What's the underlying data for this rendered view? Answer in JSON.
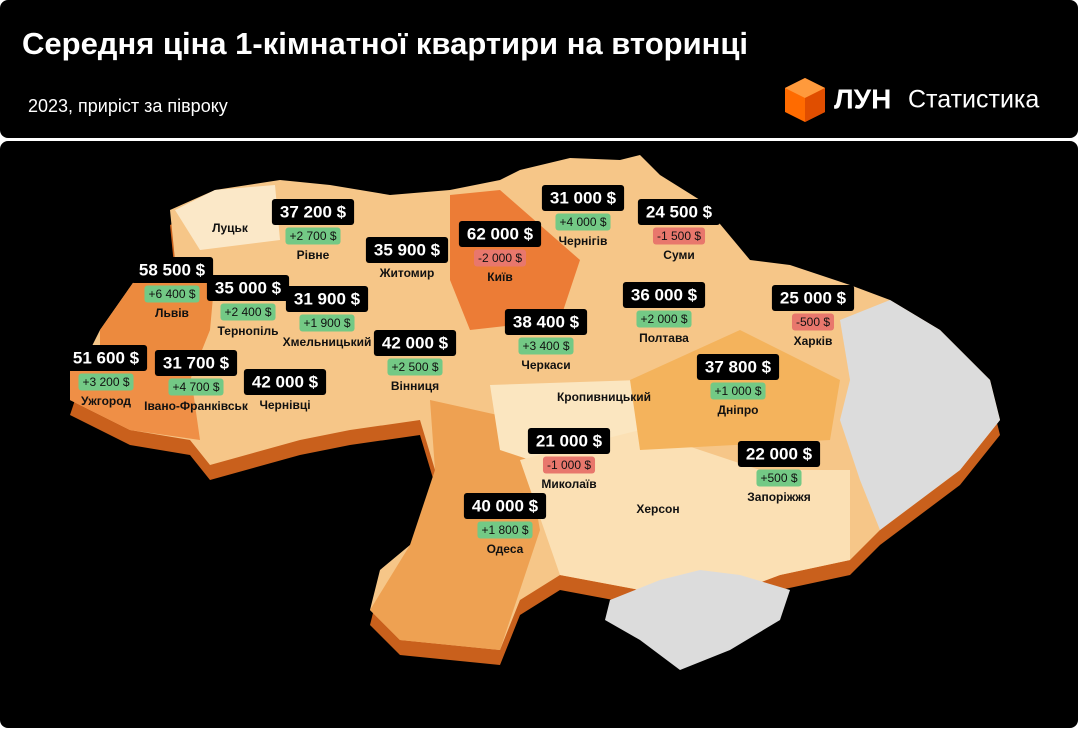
{
  "header": {
    "title": "Середня ціна 1-кімнатної квартири на вторинці",
    "subtitle": "2023, приріст за півроку",
    "brand": "ЛУН",
    "brand_section": "Статистика"
  },
  "cities": [
    {
      "name": "Луцьк"
    },
    {
      "name": "Рівне",
      "price": "37 200 $",
      "change": "+2 700 $"
    },
    {
      "name": "Житомир",
      "price": "35 900 $"
    },
    {
      "name": "Київ",
      "price": "62 000 $",
      "change": "-2 000 $"
    },
    {
      "name": "Чернігів",
      "price": "31 000 $",
      "change": "+4 000 $"
    },
    {
      "name": "Суми",
      "price": "24 500 $",
      "change": "-1 500 $"
    },
    {
      "name": "Львів",
      "price": "58 500 $",
      "change": "+6 400 $"
    },
    {
      "name": "Тернопіль",
      "price": "35 000 $",
      "change": "+2 400 $"
    },
    {
      "name": "Хмельницький",
      "price": "31 900 $",
      "change": "+1 900 $"
    },
    {
      "name": "Вінниця",
      "price": "42 000 $",
      "change": "+2 500 $"
    },
    {
      "name": "Черкаси",
      "price": "38 400 $",
      "change": "+3 400 $"
    },
    {
      "name": "Полтава",
      "price": "36 000 $",
      "change": "+2 000 $"
    },
    {
      "name": "Харків",
      "price": "25 000 $",
      "change": "-500 $"
    },
    {
      "name": "Ужгород",
      "price": "51 600 $",
      "change": "+3 200 $"
    },
    {
      "name": "Івано-Франківськ",
      "price": "31 700 $",
      "change": "+4 700 $"
    },
    {
      "name": "Чернівці",
      "price": "42 000 $"
    },
    {
      "name": "Кропивницький"
    },
    {
      "name": "Дніпро",
      "price": "37 800 $",
      "change": "+1 000 $"
    },
    {
      "name": "Миколаїв",
      "price": "21 000 $",
      "change": "-1 000 $"
    },
    {
      "name": "Запоріжжя",
      "price": "22 000 $",
      "change": "+500 $"
    },
    {
      "name": "Херсон"
    },
    {
      "name": "Одеса",
      "price": "40 000 $",
      "change": "+1 800 $"
    }
  ]
}
